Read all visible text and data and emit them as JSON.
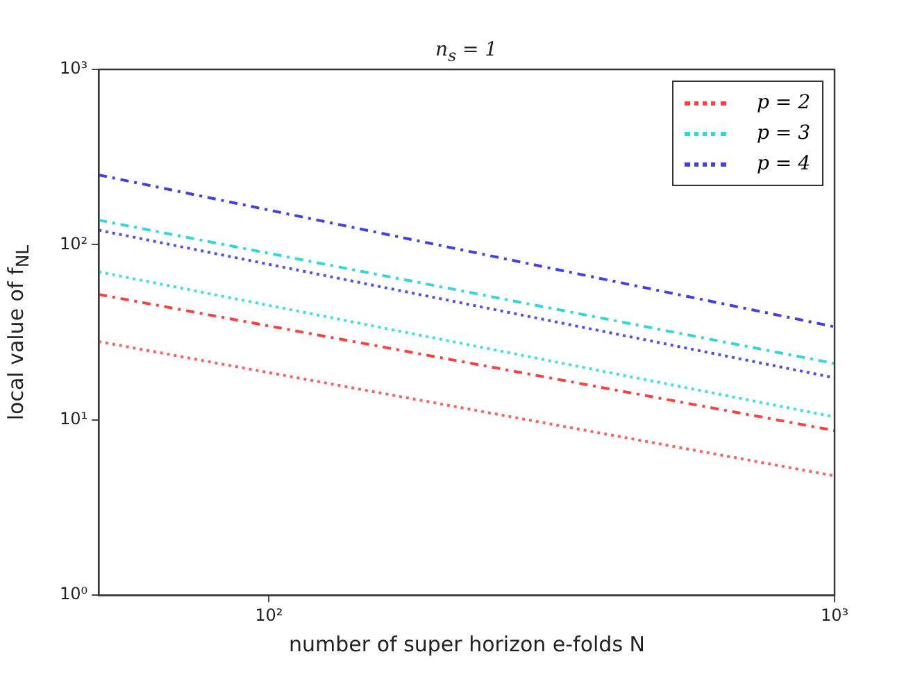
{
  "chart_data": {
    "type": "line",
    "title": "n$_{s}$ = 1",
    "xlabel": "number of super horizon e-folds N",
    "ylabel": "local value of f$_{NL}$",
    "x": [
      50,
      1000
    ],
    "series": [
      {
        "name": "p = 2",
        "color": "#ff4040",
        "values": [
          52,
          8.7
        ],
        "line_style": "dashed"
      },
      {
        "color": "#ff6060",
        "values": [
          28,
          4.8
        ],
        "line_style": "dotted"
      },
      {
        "name": "p = 3",
        "color": "#30d8d8",
        "values": [
          138,
          21
        ],
        "line_style": "dashed"
      },
      {
        "color": "#40e0e0",
        "values": [
          70,
          10.4
        ],
        "line_style": "dotted"
      },
      {
        "name": "p = 4",
        "color": "#4040e8",
        "values": [
          250,
          34
        ],
        "line_style": "dashed"
      },
      {
        "color": "#5050e8",
        "values": [
          121,
          17.4
        ],
        "line_style": "dotted"
      }
    ],
    "log": "xy",
    "xlim": [
      50,
      1000
    ],
    "ylim": [
      1,
      1000
    ],
    "xticks": [
      {
        "value": 100,
        "label": "10²"
      },
      {
        "value": 1000,
        "label": "10³"
      }
    ],
    "yticks": [
      {
        "value": 1,
        "label": "10⁰"
      },
      {
        "value": 10,
        "label": "10¹"
      },
      {
        "value": 100,
        "label": "10²"
      },
      {
        "value": 1000,
        "label": "10³"
      }
    ],
    "grid": false,
    "legend": "top right",
    "marker": "none"
  }
}
